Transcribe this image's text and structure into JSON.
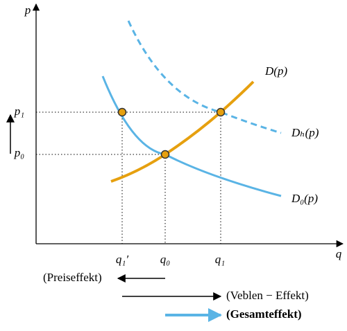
{
  "axes": {
    "y_label": "p",
    "x_label": "q"
  },
  "prices": {
    "p1": "p₁",
    "p0": "p₀"
  },
  "quantities": {
    "q1_prime": "q₁′",
    "q0": "q₀",
    "q1": "q₁"
  },
  "curves": {
    "supply_like": "D(p)",
    "demand_h": "Dₕ(p)",
    "demand_0": "D₀(p)"
  },
  "effects": {
    "price": "(Preiseffekt)",
    "veblen": "(Veblen − Effekt)",
    "total": "(Gesamteffekt)"
  }
}
